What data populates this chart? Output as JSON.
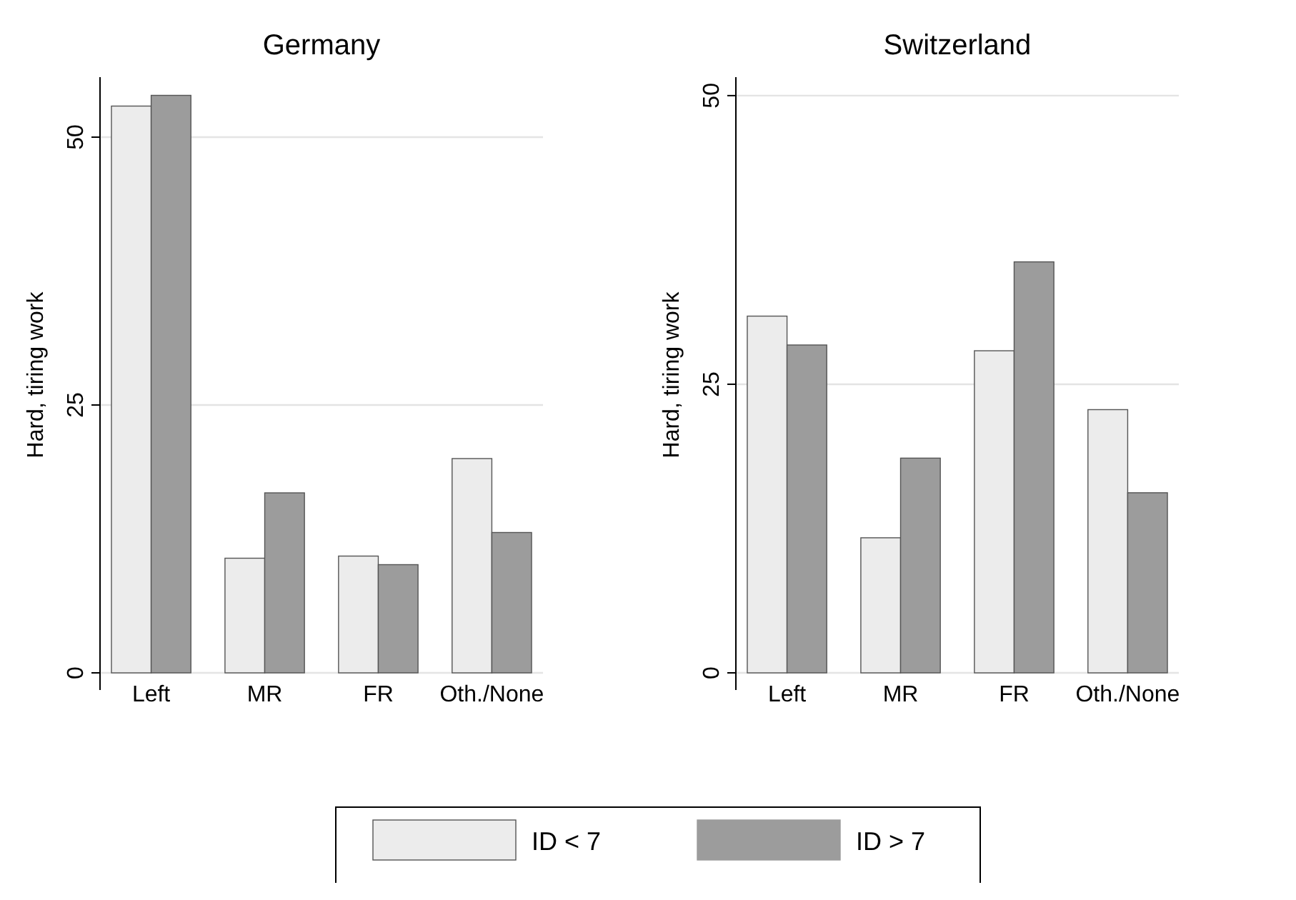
{
  "chart_data": [
    {
      "type": "bar",
      "title": "Germany",
      "ylabel": "Hard, tiring work",
      "categories": [
        "Left",
        "MR",
        "FR",
        "Oth./None"
      ],
      "ylim": [
        0,
        55.6
      ],
      "yticks": [
        0,
        25,
        50
      ],
      "grid": "y",
      "legend": "bottom",
      "series": [
        {
          "name": "ID < 7",
          "color": "#ececec",
          "values": [
            52.9,
            10.7,
            10.9,
            20
          ]
        },
        {
          "name": "ID > 7",
          "color": "#9c9c9c",
          "values": [
            53.9,
            16.8,
            10.1,
            13.1
          ]
        }
      ]
    },
    {
      "type": "bar",
      "title": "Switzerland",
      "ylabel": "Hard, tiring work",
      "categories": [
        "Left",
        "MR",
        "FR",
        "Oth./None"
      ],
      "ylim": [
        0,
        51.6
      ],
      "yticks": [
        0,
        25,
        50
      ],
      "grid": "y",
      "series": [
        {
          "color": "#ececec",
          "values": [
            30.9,
            11.7,
            27.9,
            22.8
          ]
        },
        {
          "color": "#9c9c9c",
          "values": [
            28.4,
            18.6,
            35.6,
            15.6
          ]
        }
      ]
    }
  ]
}
